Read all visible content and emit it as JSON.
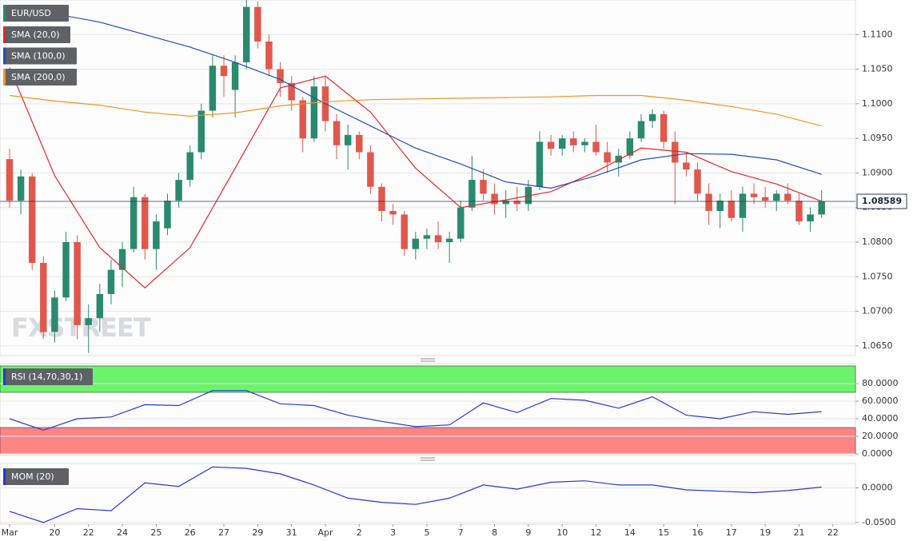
{
  "chart_data": [
    {
      "type": "candlestick",
      "name": "EUR/USD",
      "up_color": "#2b8a6e",
      "down_color": "#e0584c",
      "x": [
        0,
        1,
        2,
        3,
        4,
        5,
        6,
        7,
        8,
        9,
        10,
        11,
        12,
        13,
        14,
        15,
        16,
        17,
        18,
        19,
        20,
        21,
        22,
        23,
        24,
        25,
        26,
        27,
        28,
        29,
        30,
        31,
        32,
        33,
        34,
        35,
        36,
        37,
        38,
        39,
        40,
        41,
        42,
        43,
        44,
        45,
        46,
        47,
        48,
        49,
        50,
        51,
        52,
        53,
        54,
        55,
        56,
        57,
        58,
        59,
        60,
        61,
        62,
        63,
        64,
        65,
        66,
        67,
        68,
        69,
        70,
        71,
        72
      ],
      "open": [
        1.092,
        1.086,
        1.0895,
        1.077,
        1.067,
        1.072,
        1.08,
        1.068,
        1.069,
        1.0725,
        1.076,
        1.079,
        1.0865,
        1.079,
        1.082,
        1.086,
        1.089,
        1.093,
        1.099,
        1.1055,
        1.102,
        1.106,
        1.114,
        1.109,
        1.105,
        1.103,
        1.1005,
        1.095,
        1.1025,
        1.0975,
        1.094,
        1.0955,
        1.093,
        1.088,
        1.0845,
        1.084,
        1.079,
        1.0805,
        1.081,
        1.08,
        1.0805,
        1.085,
        1.089,
        1.087,
        1.0855,
        1.086,
        1.0855,
        1.088,
        1.0945,
        1.0935,
        1.095,
        1.094,
        1.0945,
        1.093,
        1.0915,
        1.0925,
        1.095,
        1.0975,
        1.0985,
        1.0945,
        1.0915,
        1.0905,
        1.087,
        1.0845,
        1.086,
        1.0835,
        1.087,
        1.0865,
        1.086,
        1.087,
        1.086,
        1.083,
        1.084
      ],
      "high": [
        1.0935,
        1.0905,
        1.09,
        1.078,
        1.073,
        1.0815,
        1.081,
        1.071,
        1.074,
        1.0775,
        1.08,
        1.088,
        1.087,
        1.084,
        1.087,
        1.09,
        1.094,
        1.1,
        1.107,
        1.107,
        1.107,
        1.115,
        1.1148,
        1.11,
        1.106,
        1.104,
        1.101,
        1.104,
        1.104,
        1.0985,
        1.097,
        1.096,
        1.094,
        1.0885,
        1.0855,
        1.0845,
        1.0815,
        1.082,
        1.083,
        1.0815,
        1.086,
        1.0925,
        1.0905,
        1.0885,
        1.0875,
        1.088,
        1.089,
        1.096,
        1.0955,
        1.0955,
        1.096,
        1.095,
        1.097,
        1.0945,
        1.0935,
        1.096,
        1.0985,
        1.0992,
        1.099,
        1.096,
        1.093,
        1.0915,
        1.0885,
        1.087,
        1.0875,
        1.088,
        1.0885,
        1.088,
        1.0875,
        1.0885,
        1.087,
        1.085,
        1.0875
      ],
      "low": [
        1.085,
        1.084,
        1.076,
        1.066,
        1.0655,
        1.0715,
        1.066,
        1.064,
        1.067,
        1.071,
        1.0735,
        1.0785,
        1.0775,
        1.076,
        1.081,
        1.085,
        1.088,
        1.092,
        1.098,
        1.101,
        1.098,
        1.105,
        1.108,
        1.104,
        1.101,
        1.099,
        1.093,
        1.0945,
        1.096,
        1.092,
        1.0905,
        1.092,
        1.087,
        1.083,
        1.0825,
        1.078,
        1.0775,
        1.079,
        1.079,
        1.077,
        1.08,
        1.0845,
        1.086,
        1.084,
        1.0835,
        1.0845,
        1.0845,
        1.0875,
        1.0925,
        1.0925,
        1.093,
        1.093,
        1.0925,
        1.09,
        1.0895,
        1.092,
        1.0945,
        1.0965,
        1.0935,
        1.0855,
        1.0895,
        1.086,
        1.0825,
        1.082,
        1.083,
        1.0815,
        1.0855,
        1.085,
        1.0845,
        1.0855,
        1.0825,
        1.0815,
        1.0835
      ],
      "close": [
        1.086,
        1.0895,
        1.077,
        1.067,
        1.072,
        1.08,
        1.068,
        1.069,
        1.0725,
        1.076,
        1.079,
        1.0865,
        1.079,
        1.083,
        1.086,
        1.089,
        1.093,
        1.099,
        1.1055,
        1.104,
        1.106,
        1.114,
        1.109,
        1.105,
        1.103,
        1.1005,
        1.095,
        1.1025,
        1.0975,
        1.094,
        1.0955,
        1.093,
        1.088,
        1.0845,
        1.084,
        1.079,
        1.0805,
        1.081,
        1.08,
        1.0805,
        1.085,
        1.089,
        1.087,
        1.0855,
        1.086,
        1.0855,
        1.088,
        1.0945,
        1.0935,
        1.095,
        1.094,
        1.0945,
        1.093,
        1.0915,
        1.0925,
        1.095,
        1.0975,
        1.0985,
        1.0945,
        1.0915,
        1.0905,
        1.087,
        1.0845,
        1.086,
        1.0835,
        1.087,
        1.0865,
        1.086,
        1.087,
        1.086,
        1.083,
        1.084,
        1.0859
      ],
      "series": [
        {
          "name": "SMA (20,0)",
          "color": "#e8262b",
          "x": [
            0,
            4,
            8,
            12,
            16,
            20,
            24,
            28,
            32,
            36,
            40,
            44,
            48,
            52,
            56,
            60,
            64,
            68,
            72
          ],
          "values": [
            1.1052,
            1.0896,
            1.0792,
            1.0734,
            1.0792,
            1.0907,
            1.1023,
            1.104,
            1.0988,
            1.0907,
            1.085,
            1.0861,
            1.0873,
            1.0902,
            1.0936,
            1.093,
            1.0902,
            1.0884,
            1.0859
          ]
        },
        {
          "name": "SMA (100,0)",
          "color": "#1f4fb5",
          "x": [
            0,
            4,
            8,
            12,
            16,
            20,
            24,
            28,
            32,
            36,
            40,
            44,
            48,
            52,
            56,
            60,
            64,
            68,
            72
          ],
          "values": [
            1.114,
            1.113,
            1.1118,
            1.11,
            1.1082,
            1.106,
            1.1035,
            1.1,
            1.0968,
            1.0936,
            1.0913,
            1.0887,
            1.0878,
            1.0896,
            1.0919,
            1.0928,
            1.0927,
            1.0919,
            1.0898
          ]
        },
        {
          "name": "SMA (200,0)",
          "color": "#f7931e",
          "x": [
            0,
            4,
            8,
            12,
            16,
            20,
            24,
            28,
            32,
            36,
            40,
            44,
            48,
            52,
            56,
            60,
            64,
            68,
            72
          ],
          "values": [
            1.1012,
            1.1004,
            1.0998,
            1.0988,
            1.0982,
            1.0987,
            1.0997,
            1.1003,
            1.1006,
            1.1007,
            1.1008,
            1.1009,
            1.101,
            1.1012,
            1.1012,
            1.1005,
            1.0996,
            1.0985,
            1.0968
          ]
        }
      ],
      "last_price": 1.08589,
      "watermark": "FXSTREET",
      "xlim": [
        -0.85,
        75
      ],
      "ylim": [
        1.0636,
        1.115
      ],
      "yticks": [
        {
          "value": 1.065,
          "label": "1.0650"
        },
        {
          "value": 1.07,
          "label": "1.0700"
        },
        {
          "value": 1.075,
          "label": "1.0750"
        },
        {
          "value": 1.08,
          "label": "1.0800"
        },
        {
          "value": 1.085,
          "label": "1.0850"
        },
        {
          "value": 1.09,
          "label": "1.0900"
        },
        {
          "value": 1.095,
          "label": "1.0950"
        },
        {
          "value": 1.1,
          "label": "1.1000"
        },
        {
          "value": 1.105,
          "label": "1.1050"
        },
        {
          "value": 1.11,
          "label": "1.1100"
        }
      ],
      "xticks": [
        {
          "value": 0,
          "label": "Mar"
        },
        {
          "value": 4,
          "label": "20"
        },
        {
          "value": 7,
          "label": "22"
        },
        {
          "value": 10,
          "label": "24"
        },
        {
          "value": 13,
          "label": "25"
        },
        {
          "value": 16,
          "label": "26"
        },
        {
          "value": 19,
          "label": "27"
        },
        {
          "value": 22,
          "label": "29"
        },
        {
          "value": 25,
          "label": "31"
        },
        {
          "value": 28,
          "label": "Apr"
        },
        {
          "value": 31,
          "label": "2"
        },
        {
          "value": 34,
          "label": "3"
        },
        {
          "value": 37,
          "label": "5"
        },
        {
          "value": 40,
          "label": "7"
        },
        {
          "value": 43,
          "label": "8"
        },
        {
          "value": 46,
          "label": "9"
        },
        {
          "value": 49,
          "label": "10"
        },
        {
          "value": 52,
          "label": "12"
        },
        {
          "value": 55,
          "label": "14"
        },
        {
          "value": 58,
          "label": "15"
        },
        {
          "value": 61,
          "label": "16"
        },
        {
          "value": 64,
          "label": "17"
        },
        {
          "value": 67,
          "label": "19"
        },
        {
          "value": 70,
          "label": "21"
        },
        {
          "value": 73,
          "label": "22"
        }
      ],
      "grid": true
    },
    {
      "type": "line",
      "series": [
        {
          "name": "RSI (14,70,30,1)",
          "color": "#2936d8",
          "x": [
            0,
            3,
            6,
            9,
            12,
            15,
            18,
            21,
            24,
            27,
            30,
            33,
            36,
            39,
            42,
            45,
            48,
            51,
            54,
            57,
            60,
            63,
            66,
            69,
            72
          ],
          "values": [
            40,
            27,
            40,
            42,
            56,
            55,
            72,
            72,
            57,
            55,
            44,
            37,
            31,
            33,
            58,
            47,
            63,
            61,
            52,
            65,
            44,
            40,
            48,
            45,
            48
          ]
        }
      ],
      "bands": [
        {
          "from": 70,
          "to": 100,
          "color": "#6cf36c"
        },
        {
          "from": 0,
          "to": 30,
          "color": "#ff8585"
        }
      ],
      "ylim": [
        -1.8,
        102.7
      ],
      "yticks": [
        {
          "value": 0,
          "label": "0.0000"
        },
        {
          "value": 20,
          "label": "20.0000"
        },
        {
          "value": 40,
          "label": "40.0000"
        },
        {
          "value": 60,
          "label": "60.0000"
        },
        {
          "value": 80,
          "label": "80.0000"
        }
      ],
      "grid": true
    },
    {
      "type": "line",
      "series": [
        {
          "name": "MOM (20)",
          "color": "#2936d8",
          "x": [
            0,
            3,
            6,
            9,
            12,
            15,
            18,
            21,
            24,
            27,
            30,
            33,
            36,
            39,
            42,
            45,
            48,
            51,
            54,
            57,
            60,
            63,
            66,
            69,
            72
          ],
          "values": [
            -0.034,
            -0.05,
            -0.03,
            -0.033,
            0.007,
            0.002,
            0.03,
            0.028,
            0.02,
            0.004,
            -0.015,
            -0.021,
            -0.024,
            -0.015,
            0.004,
            -0.002,
            0.008,
            0.01,
            0.004,
            0.004,
            -0.003,
            -0.005,
            -0.007,
            -0.004,
            0.001
          ]
        }
      ],
      "ylim": [
        -0.0525,
        0.035
      ],
      "yticks": [
        {
          "value": -0.05,
          "label": "-0.0500"
        },
        {
          "value": 0,
          "label": "0.0000"
        }
      ],
      "grid": true
    }
  ]
}
